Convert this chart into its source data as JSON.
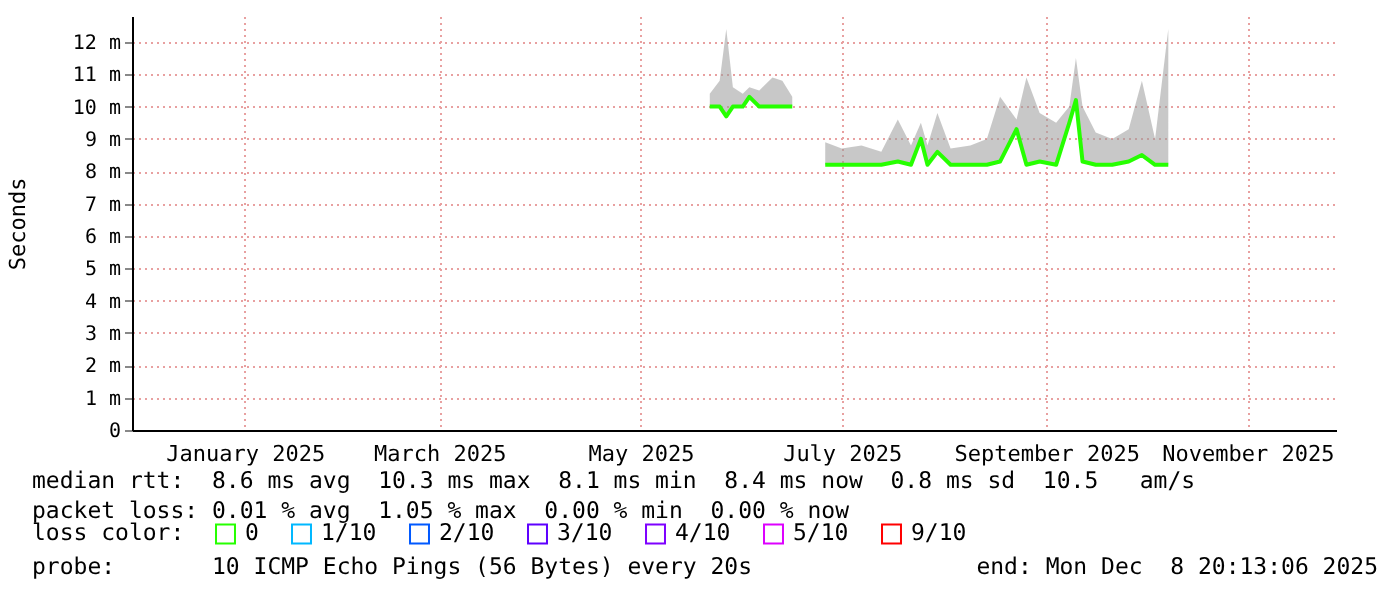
{
  "chart_data": {
    "type": "line",
    "ylabel": "Seconds",
    "legend_title": "loss color:",
    "annotations": [
      "median rtt:  8.6 ms avg  10.3 ms max  8.1 ms min  8.4 ms now  0.8 ms sd  10.5   am/s",
      "packet loss: 0.01 % avg  1.05 % max  0.00 % min  0.00 % now",
      "probe:       10 ICMP Echo Pings (56 Bytes) every 20s",
      "end: Mon Dec  8 20:13:06 2025"
    ],
    "xlim": [
      "2024-12-08T20:13",
      "2025-12-08T20:13"
    ],
    "xticks": [
      {
        "value": "2025-01-12",
        "label": "January 2025"
      },
      {
        "value": "2025-03-12",
        "label": "March 2025"
      },
      {
        "value": "2025-05-12",
        "label": "May 2025"
      },
      {
        "value": "2025-07-12",
        "label": "July 2025"
      },
      {
        "value": "2025-09-12",
        "label": "September 2025"
      },
      {
        "value": "2025-11-12",
        "label": "November 2025"
      }
    ],
    "ylim": [
      0,
      12.8
    ],
    "yticks": [
      0,
      {
        "value": 1,
        "label": "1 m"
      },
      {
        "value": 2,
        "label": "2 m"
      },
      {
        "value": 3,
        "label": "3 m"
      },
      {
        "value": 4,
        "label": "4 m"
      },
      {
        "value": 5,
        "label": "5 m"
      },
      {
        "value": 6,
        "label": "6 m"
      },
      {
        "value": 7,
        "label": "7 m"
      },
      {
        "value": 8,
        "label": "8 m"
      },
      {
        "value": 9,
        "label": "9 m"
      },
      {
        "value": 10,
        "label": "10 m"
      },
      {
        "value": 11,
        "label": "11 m"
      },
      {
        "value": 12,
        "label": "12 m"
      }
    ],
    "grid": true,
    "legend": "bottom",
    "marker": "none",
    "line_style": "solid",
    "series": [
      {
        "name": "0",
        "color": "#26ff00",
        "x": [
          "2025-06-02",
          "2025-06-05",
          "2025-06-07",
          "2025-06-09",
          "2025-06-12",
          "2025-06-14",
          "2025-06-17",
          "2025-06-21",
          "2025-06-24",
          "2025-06-27",
          "2025-07-02",
          "2025-07-07",
          "2025-07-12",
          "2025-07-18",
          "2025-07-24",
          "2025-07-29",
          "2025-08-02",
          "2025-08-05",
          "2025-08-07",
          "2025-08-10",
          "2025-08-14",
          "2025-08-20",
          "2025-08-25",
          "2025-08-29",
          "2025-09-03",
          "2025-09-06",
          "2025-09-10",
          "2025-09-15",
          "2025-09-19",
          "2025-09-21",
          "2025-09-23",
          "2025-09-27",
          "2025-10-02",
          "2025-10-07",
          "2025-10-11",
          "2025-10-15",
          "2025-10-19"
        ],
        "values": [
          10.0,
          10.0,
          9.7,
          10.0,
          10.0,
          10.3,
          10.0,
          10.0,
          10.0,
          10.0,
          null,
          8.2,
          8.2,
          8.2,
          8.2,
          8.3,
          8.2,
          9.0,
          8.2,
          8.6,
          8.2,
          8.2,
          8.2,
          8.3,
          9.3,
          8.2,
          8.3,
          8.2,
          9.5,
          10.2,
          8.3,
          8.2,
          8.2,
          8.3,
          8.5,
          8.2,
          8.2
        ],
        "lower": [
          10.0,
          10.0,
          9.7,
          10.0,
          10.0,
          10.3,
          10.0,
          10.0,
          10.0,
          10.0,
          null,
          8.2,
          8.2,
          8.2,
          8.2,
          8.3,
          8.2,
          9.0,
          8.2,
          8.6,
          8.2,
          8.2,
          8.2,
          8.3,
          9.3,
          8.2,
          8.3,
          8.2,
          9.5,
          10.2,
          8.3,
          8.2,
          8.2,
          8.3,
          8.5,
          8.2,
          8.2
        ],
        "upper": [
          10.4,
          10.8,
          12.4,
          10.6,
          10.4,
          10.6,
          10.5,
          10.9,
          10.8,
          10.3,
          null,
          8.9,
          8.7,
          8.8,
          8.6,
          9.6,
          8.8,
          9.5,
          8.8,
          9.8,
          8.7,
          8.8,
          9.0,
          10.3,
          9.6,
          10.9,
          9.8,
          9.5,
          10.0,
          11.5,
          10.0,
          9.2,
          9.0,
          9.3,
          10.8,
          9.0,
          12.4
        ]
      },
      {
        "name": "1/10",
        "color": "#00b8ff"
      },
      {
        "name": "2/10",
        "color": "#0059ff"
      },
      {
        "name": "3/10",
        "color": "#5e00ff"
      },
      {
        "name": "4/10",
        "color": "#7e00ff"
      },
      {
        "name": "5/10",
        "color": "#dd00ff"
      },
      {
        "name": "9/10",
        "color": "#ff0000"
      }
    ]
  }
}
